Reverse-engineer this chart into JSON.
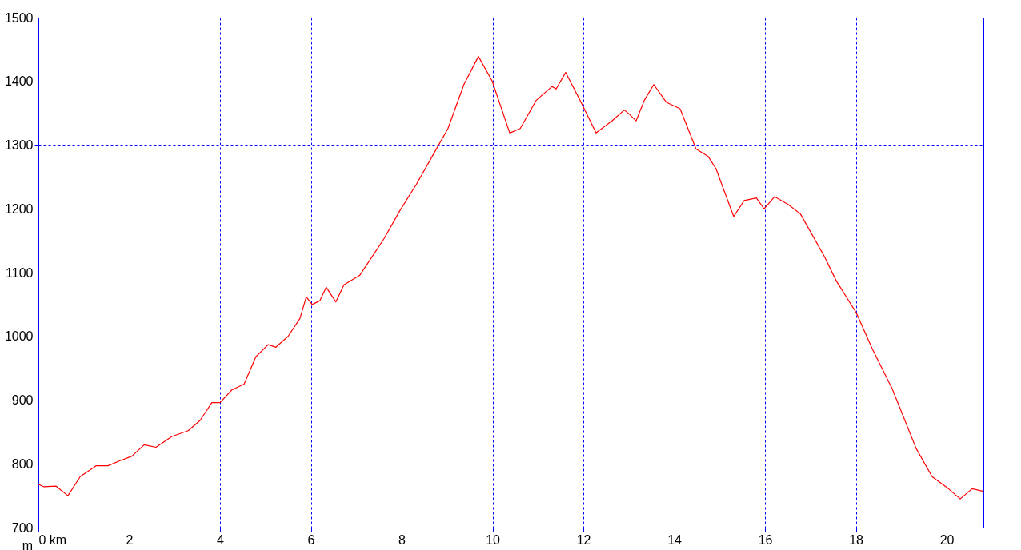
{
  "chart_data": {
    "type": "line",
    "ylabel": "m",
    "x": [
      0,
      0.12,
      0.39,
      0.65,
      0.92,
      1.27,
      1.53,
      1.8,
      2.06,
      2.33,
      2.59,
      2.94,
      3.3,
      3.56,
      3.82,
      4.0,
      4.26,
      4.53,
      4.79,
      5.06,
      5.23,
      5.5,
      5.76,
      5.9,
      6.03,
      6.2,
      6.34,
      6.55,
      6.73,
      7.08,
      7.35,
      7.61,
      7.96,
      8.32,
      8.67,
      9.02,
      9.37,
      9.69,
      9.99,
      10.38,
      10.61,
      10.96,
      11.31,
      11.4,
      11.61,
      11.93,
      12.28,
      12.63,
      12.9,
      12.99,
      13.16,
      13.34,
      13.55,
      13.83,
      14.13,
      14.48,
      14.75,
      14.92,
      15.31,
      15.54,
      15.81,
      15.98,
      16.21,
      16.51,
      16.78,
      17.31,
      17.57,
      18.01,
      18.36,
      18.8,
      19.33,
      19.68,
      20.04,
      20.3,
      20.56,
      20.81
    ],
    "series": [
      {
        "color": "#ff0000",
        "values": [
          768,
          764,
          765,
          750,
          780,
          797,
          797,
          805,
          812,
          830,
          826,
          843,
          852,
          868,
          896,
          896,
          916,
          925,
          968,
          987,
          983,
          1000,
          1028,
          1062,
          1050,
          1056,
          1077,
          1054,
          1081,
          1096,
          1125,
          1153,
          1197,
          1238,
          1282,
          1326,
          1395,
          1439,
          1401,
          1319,
          1326,
          1370,
          1392,
          1388,
          1414,
          1370,
          1319,
          1338,
          1355,
          1350,
          1338,
          1370,
          1395,
          1367,
          1357,
          1294,
          1282,
          1263,
          1188,
          1213,
          1217,
          1200,
          1219,
          1207,
          1192,
          1125,
          1087,
          1037,
          981,
          918,
          824,
          780,
          761,
          745,
          761,
          757
        ]
      }
    ],
    "xlim": [
      0,
      20.81
    ],
    "xticks": [
      {
        "value": 0,
        "label": "0 km"
      },
      2,
      4,
      6,
      8,
      10,
      12,
      14,
      16,
      18,
      20
    ],
    "ylim": [
      700,
      1500
    ],
    "yticks": [
      700,
      800,
      900,
      1000,
      1100,
      1200,
      1300,
      1400,
      1500
    ],
    "grid": true,
    "marker": "none",
    "line_style": "solid"
  }
}
